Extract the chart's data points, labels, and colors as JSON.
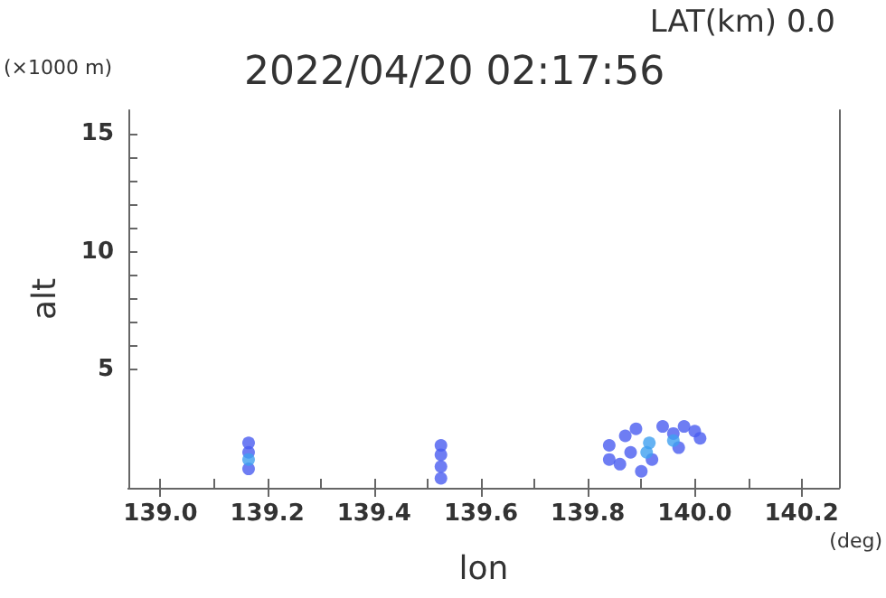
{
  "chart_data": {
    "type": "scatter",
    "title": "2022/04/20 02:17:56",
    "xlabel": "lon",
    "ylabel": "alt",
    "annotations": [
      "LAT(km) 0.0",
      "(×1000 m)",
      "(deg)"
    ],
    "series": [
      {
        "color": "#4a5cf0",
        "x": [
          139.165,
          139.165,
          139.165,
          139.525,
          139.525,
          139.525,
          139.525,
          139.84,
          139.84,
          139.86,
          139.87,
          139.88,
          139.89,
          139.9,
          139.92,
          139.94,
          139.96,
          139.98,
          139.97,
          140.0,
          140.01
        ],
        "values": [
          0.8,
          1.5,
          1.9,
          0.4,
          0.9,
          1.4,
          1.8,
          1.2,
          1.8,
          1.0,
          2.2,
          1.5,
          2.5,
          0.7,
          1.2,
          2.6,
          2.3,
          2.6,
          1.7,
          2.4,
          2.1
        ]
      },
      {
        "color": "#3fa0f0",
        "x": [
          139.165,
          139.915,
          139.91,
          139.96
        ],
        "values": [
          1.2,
          1.9,
          1.5,
          2.0
        ]
      }
    ],
    "xlim": [
      138.94,
      140.27
    ],
    "xticks": [
      {
        "value": 139,
        "label": "139.0"
      },
      139.2,
      139.4,
      139.6,
      139.8,
      {
        "value": 140,
        "label": "140.0"
      },
      140.2
    ],
    "ylim": [
      0,
      16
    ],
    "yticks": [
      5,
      10,
      15
    ],
    "grid": false,
    "marker": "circle"
  }
}
